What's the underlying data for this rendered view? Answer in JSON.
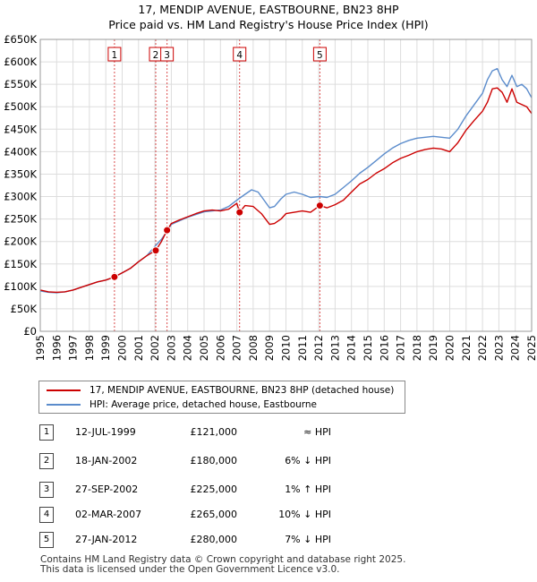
{
  "chart_data": {
    "type": "line",
    "title": "17, MENDIP AVENUE, EASTBOURNE, BN23 8HP",
    "subtitle": "Price paid vs. HM Land Registry's House Price Index (HPI)",
    "xlim": [
      1995,
      2025
    ],
    "ylim": [
      0,
      650000
    ],
    "x_ticks": [
      1995,
      1996,
      1997,
      1998,
      1999,
      2000,
      2001,
      2002,
      2003,
      2004,
      2005,
      2006,
      2007,
      2008,
      2009,
      2010,
      2011,
      2012,
      2013,
      2014,
      2015,
      2016,
      2017,
      2018,
      2019,
      2020,
      2021,
      2022,
      2023,
      2024,
      2025
    ],
    "y_ticks": [
      {
        "value": 0,
        "label": "£0"
      },
      {
        "value": 50000,
        "label": "£50K"
      },
      {
        "value": 100000,
        "label": "£100K"
      },
      {
        "value": 150000,
        "label": "£150K"
      },
      {
        "value": 200000,
        "label": "£200K"
      },
      {
        "value": 250000,
        "label": "£250K"
      },
      {
        "value": 300000,
        "label": "£300K"
      },
      {
        "value": 350000,
        "label": "£350K"
      },
      {
        "value": 400000,
        "label": "£400K"
      },
      {
        "value": 450000,
        "label": "£450K"
      },
      {
        "value": 500000,
        "label": "£500K"
      },
      {
        "value": 550000,
        "label": "£550K"
      },
      {
        "value": 600000,
        "label": "£600K"
      },
      {
        "value": 650000,
        "label": "£650K"
      }
    ],
    "series": [
      {
        "name": "17, MENDIP AVENUE, EASTBOURNE, BN23 8HP (detached house)",
        "color": "#cc0000",
        "x": [
          1995.0,
          1995.5,
          1996.0,
          1996.5,
          1997.0,
          1997.5,
          1998.0,
          1998.5,
          1999.0,
          1999.53,
          2000.0,
          2000.5,
          2001.0,
          2001.5,
          2002.05,
          2002.4,
          2002.74,
          2003.0,
          2003.5,
          2004.0,
          2004.5,
          2005.0,
          2005.5,
          2006.0,
          2006.5,
          2007.0,
          2007.17,
          2007.5,
          2008.0,
          2008.5,
          2009.0,
          2009.3,
          2009.7,
          2010.0,
          2010.5,
          2011.0,
          2011.5,
          2012.07,
          2012.5,
          2013.0,
          2013.5,
          2014.0,
          2014.5,
          2015.0,
          2015.5,
          2016.0,
          2016.5,
          2017.0,
          2017.5,
          2018.0,
          2018.5,
          2019.0,
          2019.5,
          2020.0,
          2020.5,
          2021.0,
          2021.5,
          2022.0,
          2022.3,
          2022.6,
          2022.9,
          2023.2,
          2023.5,
          2023.8,
          2024.1,
          2024.4,
          2024.7,
          2025.0
        ],
        "values": [
          92000,
          88000,
          87000,
          88000,
          92000,
          98000,
          104000,
          110000,
          114000,
          121000,
          130000,
          140000,
          155000,
          168000,
          180000,
          200000,
          225000,
          240000,
          248000,
          255000,
          262000,
          268000,
          270000,
          268000,
          272000,
          285000,
          265000,
          280000,
          278000,
          262000,
          238000,
          240000,
          250000,
          262000,
          265000,
          268000,
          265000,
          280000,
          275000,
          282000,
          292000,
          310000,
          328000,
          338000,
          352000,
          362000,
          375000,
          385000,
          392000,
          400000,
          405000,
          408000,
          406000,
          400000,
          420000,
          448000,
          470000,
          490000,
          510000,
          540000,
          542000,
          532000,
          510000,
          540000,
          510000,
          505000,
          500000,
          485000
        ]
      },
      {
        "name": "HPI: Average price, detached house, Eastbourne",
        "color": "#5b8ccc",
        "x": [
          1995.0,
          1995.5,
          1996.0,
          1996.5,
          1997.0,
          1997.5,
          1998.0,
          1998.5,
          1999.0,
          1999.53,
          2000.0,
          2000.5,
          2001.0,
          2001.5,
          2002.05,
          2002.4,
          2002.74,
          2003.0,
          2003.5,
          2004.0,
          2004.5,
          2005.0,
          2005.5,
          2006.0,
          2006.5,
          2007.0,
          2007.5,
          2007.9,
          2008.3,
          2008.6,
          2009.0,
          2009.3,
          2009.7,
          2010.0,
          2010.5,
          2011.0,
          2011.5,
          2012.07,
          2012.5,
          2013.0,
          2013.5,
          2014.0,
          2014.5,
          2015.0,
          2015.5,
          2016.0,
          2016.5,
          2017.0,
          2017.5,
          2018.0,
          2018.5,
          2019.0,
          2019.5,
          2020.0,
          2020.5,
          2021.0,
          2021.5,
          2022.0,
          2022.3,
          2022.6,
          2022.9,
          2023.2,
          2023.5,
          2023.8,
          2024.1,
          2024.4,
          2024.7,
          2025.0
        ],
        "values": [
          90000,
          87000,
          86000,
          88000,
          92000,
          98000,
          104000,
          110000,
          114000,
          121000,
          130000,
          140000,
          155000,
          168000,
          191000,
          205000,
          222000,
          238000,
          246000,
          254000,
          260000,
          266000,
          268000,
          270000,
          278000,
          292000,
          305000,
          315000,
          310000,
          295000,
          275000,
          278000,
          295000,
          305000,
          310000,
          305000,
          298000,
          300000,
          298000,
          305000,
          320000,
          335000,
          352000,
          365000,
          380000,
          395000,
          408000,
          418000,
          425000,
          430000,
          432000,
          434000,
          432000,
          430000,
          450000,
          480000,
          505000,
          530000,
          560000,
          580000,
          585000,
          560000,
          545000,
          570000,
          545000,
          550000,
          540000,
          520000
        ]
      }
    ],
    "sales": [
      {
        "num": "1",
        "x": 1999.53,
        "price": 121000
      },
      {
        "num": "2",
        "x": 2002.05,
        "price": 180000
      },
      {
        "num": "3",
        "x": 2002.74,
        "price": 225000
      },
      {
        "num": "4",
        "x": 2007.17,
        "price": 265000
      },
      {
        "num": "5",
        "x": 2012.07,
        "price": 280000
      }
    ]
  },
  "legend": {
    "items": [
      {
        "label": "17, MENDIP AVENUE, EASTBOURNE, BN23 8HP (detached house)",
        "color": "#cc0000"
      },
      {
        "label": "HPI: Average price, detached house, Eastbourne",
        "color": "#5b8ccc"
      }
    ]
  },
  "transactions": [
    {
      "num": "1",
      "date": "12-JUL-1999",
      "price": "£121,000",
      "hpi": "≈ HPI"
    },
    {
      "num": "2",
      "date": "18-JAN-2002",
      "price": "£180,000",
      "hpi": "6% ↓ HPI"
    },
    {
      "num": "3",
      "date": "27-SEP-2002",
      "price": "£225,000",
      "hpi": "1% ↑ HPI"
    },
    {
      "num": "4",
      "date": "02-MAR-2007",
      "price": "£265,000",
      "hpi": "10% ↓ HPI"
    },
    {
      "num": "5",
      "date": "27-JAN-2012",
      "price": "£280,000",
      "hpi": "7% ↓ HPI"
    }
  ],
  "footer": {
    "line1": "Contains HM Land Registry data © Crown copyright and database right 2025.",
    "line2": "This data is licensed under the Open Government Licence v3.0."
  }
}
